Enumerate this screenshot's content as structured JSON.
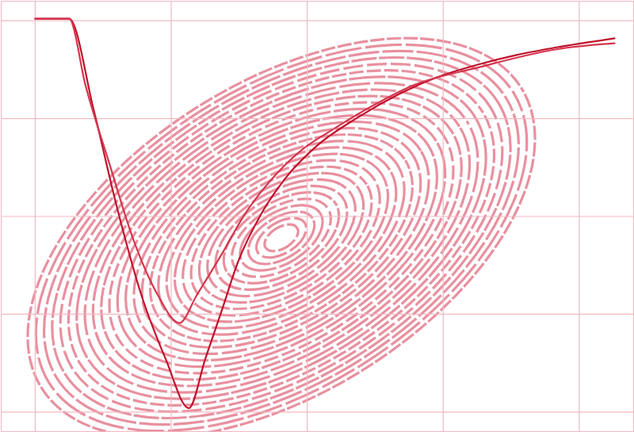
{
  "chart_data": {
    "type": "line",
    "xlim": [
      -0.25,
      4.4
    ],
    "ylim": [
      -0.2,
      4.2
    ],
    "xticks": [
      0,
      1,
      2,
      3,
      4
    ],
    "yticks": [
      0,
      1,
      2,
      3,
      4
    ],
    "grid": true,
    "tick_labels": false,
    "series": [
      {
        "color": "#c0102a",
        "x": [
          0,
          0.25,
          0.43,
          0.6,
          0.78,
          0.96,
          1.13,
          1.25,
          1.37,
          1.49,
          1.66,
          1.84,
          2.07,
          2.37,
          2.66,
          2.95,
          3.25,
          3.54,
          3.84,
          4.26
        ],
        "values": [
          4.02,
          4.02,
          3.09,
          2.1,
          1.2,
          0.54,
          0.04,
          0.54,
          1.03,
          1.53,
          2.02,
          2.39,
          2.72,
          3.01,
          3.24,
          3.42,
          3.55,
          3.65,
          3.73,
          3.82
        ]
      },
      {
        "color": "#d4364e",
        "x": [
          0,
          0.25,
          0.37,
          0.55,
          0.72,
          0.9,
          1.06,
          1.19,
          1.37,
          1.54,
          1.72,
          1.96,
          2.19,
          2.48,
          2.78,
          3.25,
          3.84,
          4.26
        ],
        "values": [
          4.02,
          4.02,
          3.34,
          2.52,
          1.77,
          1.2,
          0.91,
          1.2,
          1.61,
          2.02,
          2.35,
          2.68,
          2.89,
          3.13,
          3.34,
          3.52,
          3.71,
          3.77
        ]
      }
    ]
  }
}
